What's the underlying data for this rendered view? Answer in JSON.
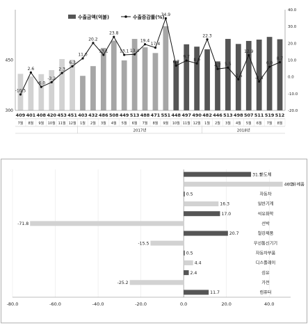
{
  "chart_data": [
    {
      "type": "bar+line",
      "legend": [
        {
          "label": "수출금액(억불)",
          "color": "#555555"
        },
        {
          "label": "수출증감률(%)",
          "color": "#111111"
        }
      ],
      "y_left_ticks": [
        {
          "label": "450",
          "value": 450
        },
        {
          "label": "300",
          "value": 300
        }
      ],
      "y_left_range": [
        300,
        600
      ],
      "y_right_ticks": [
        "40.0",
        "30.0",
        "20.0",
        "10.0",
        "0.0",
        "-10.0",
        "-20.0"
      ],
      "y_right_range": [
        -20,
        40
      ],
      "year_groups": [
        {
          "label": "2017년",
          "start": 6,
          "end": 17
        },
        {
          "label": "2018년",
          "start": 18,
          "end": 25
        }
      ],
      "categories": [
        "7월",
        "8월",
        "9월",
        "10월",
        "11월",
        "12월",
        "1월",
        "2월",
        "3월",
        "4월",
        "5월",
        "6월",
        "7월",
        "8월",
        "9월",
        "10월",
        "11월",
        "12월",
        "1월",
        "2월",
        "3월",
        "4월",
        "5월",
        "6월",
        "7월",
        "8월"
      ],
      "series": [
        {
          "name": "수출금액(억불)",
          "values": [
            409,
            401,
            408,
            420,
            453,
            451,
            403,
            432,
            486,
            508,
            449,
            513,
            488,
            471,
            551,
            448,
            497,
            490,
            482,
            446,
            513,
            498,
            507,
            511,
            519,
            512
          ],
          "colors": [
            "light",
            "light",
            "light",
            "light",
            "light",
            "light",
            "medium",
            "medium",
            "medium",
            "medium",
            "medium",
            "medium",
            "medium",
            "medium",
            "medium",
            "dark",
            "dark",
            "dark",
            "dark",
            "dark",
            "dark",
            "dark",
            "dark",
            "dark",
            "dark",
            "dark"
          ]
        },
        {
          "name": "수출증감률(%)",
          "values": [
            -10.5,
            2.6,
            -6.0,
            -3.2,
            2.3,
            6.3,
            11.0,
            20.2,
            13.1,
            23.8,
            13.1,
            13.4,
            19.4,
            17.4,
            34.9,
            6.7,
            9.7,
            8.0,
            22.3,
            4.7,
            5.5,
            -1.5,
            12.9,
            -2.8,
            6.0,
            8.7
          ],
          "labels": [
            "-10.5",
            "2.6",
            "-6.0",
            "-3.2",
            "2.3",
            "6.3",
            "11.0",
            "20.2",
            "13.1",
            "23.8",
            "13.1",
            "13.4",
            "19.4",
            "17.4",
            "34.9",
            "6.7",
            "9.7",
            "8.0",
            "22.3",
            "4.7",
            "5.5",
            "-1.5",
            "12.9",
            "-2.8",
            "6.0",
            "8.7"
          ]
        }
      ],
      "bar_value_labels": [
        "409",
        "401",
        "408",
        "420",
        "453",
        "451",
        "403",
        "432",
        "486",
        "508",
        "449",
        "513",
        "488",
        "471",
        "551",
        "448",
        "497",
        "490",
        "482",
        "446",
        "513",
        "498",
        "507",
        "511",
        "519",
        "512"
      ]
    },
    {
      "type": "bar",
      "orientation": "horizontal",
      "categories": [
        "반도체",
        "석유제품",
        "자동차",
        "일반기계",
        "석유화학",
        "선박",
        "철강제품",
        "무선통신기기",
        "자동차부품",
        "디스플레이",
        "섬유",
        "가전",
        "컴퓨터"
      ],
      "values": [
        31.5,
        46.3,
        0.5,
        16.3,
        17.0,
        -71.8,
        20.7,
        -15.5,
        0.5,
        4.4,
        2.4,
        -25.2,
        11.7
      ],
      "value_labels": [
        "31.5",
        "46.3",
        "0.5",
        "16.3",
        "17.0",
        "-71.8",
        "20.7",
        "-15.5",
        "0.5",
        "4.4",
        "2.4",
        "-25.2",
        "11.7"
      ],
      "colors": [
        "dark",
        "light",
        "dark",
        "light",
        "dark",
        "light",
        "dark",
        "light",
        "dark",
        "light",
        "dark",
        "light",
        "dark"
      ],
      "x_ticks": [
        "-80.0",
        "-60.0",
        "-40.0",
        "-20.0",
        "0.0",
        "20.0",
        "40.0"
      ],
      "xlim": [
        -80,
        50
      ]
    }
  ],
  "colors": {
    "dark": "#555555",
    "medium": "#a6a6a6",
    "light": "#d2d2d2",
    "line": "#111111",
    "grid": "#bfbfbf"
  }
}
